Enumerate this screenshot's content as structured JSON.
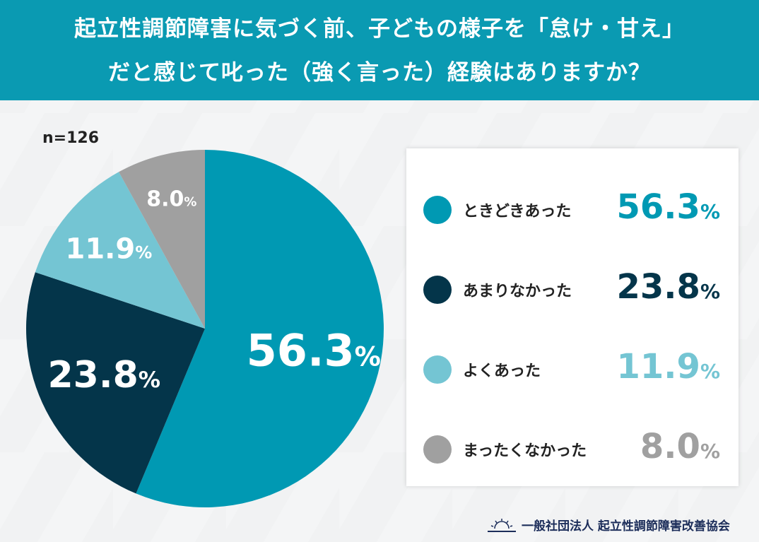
{
  "header": {
    "line1": "起立性調節障害に気づく前、子どもの様子を「怠け・甘え」",
    "line2": "だと感じて叱った（強く言った）経験はありますか？"
  },
  "chart_data": {
    "type": "pie",
    "sample": "n=126",
    "unit": "%",
    "slices": [
      {
        "label": "ときどきあった",
        "value": 56.3,
        "display": "56.3",
        "color": "#0099b3"
      },
      {
        "label": "あまりなかった",
        "value": 23.8,
        "display": "23.8",
        "color": "#04354a"
      },
      {
        "label": "よくあった",
        "value": 11.9,
        "display": "11.9",
        "color": "#74c5d3"
      },
      {
        "label": "まったくなかった",
        "value": 8.0,
        "display": "8.0",
        "color": "#a0a0a0"
      }
    ],
    "legend_placement": "right"
  },
  "footer": {
    "org": "一般社団法人 起立性調節障害改善協会",
    "logo_icon": "sunrise-icon"
  }
}
